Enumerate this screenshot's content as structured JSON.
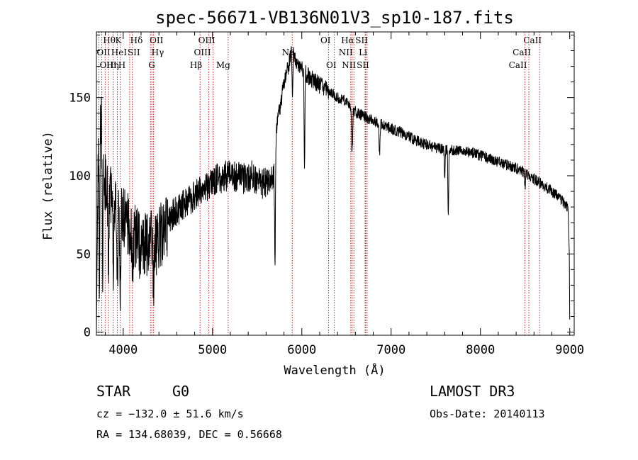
{
  "chart_data": {
    "type": "line",
    "title": "spec-56671-VB136N01V3_sp10-187.fits",
    "xlabel": "Wavelength (Å)",
    "ylabel": "Flux (relative)",
    "xlim": [
      3700,
      9050
    ],
    "ylim": [
      -2,
      192
    ],
    "xticks": [
      4000,
      5000,
      6000,
      7000,
      8000,
      9000
    ],
    "xtick_labels": [
      "4000",
      "5000",
      "6000",
      "7000",
      "8000",
      "9000"
    ],
    "yticks": [
      0,
      50,
      100,
      150
    ],
    "ytick_labels": [
      "0",
      "50",
      "100",
      "150"
    ],
    "grid": false,
    "line_color": "#000000",
    "marker_color": "#b22222",
    "series": [
      {
        "name": "flux",
        "anchors_x": [
          3700,
          3715,
          3730,
          3745,
          3760,
          3780,
          3800,
          3830,
          3860,
          3890,
          3920,
          3950,
          3990,
          4030,
          4070,
          4110,
          4150,
          4200,
          4260,
          4300,
          4340,
          4380,
          4450,
          4550,
          4650,
          4750,
          4850,
          4950,
          5050,
          5150,
          5250,
          5350,
          5450,
          5550,
          5620,
          5660,
          5690,
          5710,
          5730,
          5760,
          5800,
          5850,
          5890,
          5930,
          5980,
          6050,
          6150,
          6280,
          6400,
          6500,
          6560,
          6620,
          6700,
          6800,
          6900,
          7000,
          7100,
          7200,
          7300,
          7400,
          7500,
          7600,
          7700,
          7800,
          7900,
          8000,
          8100,
          8200,
          8300,
          8400,
          8500,
          8600,
          8700,
          8800,
          8900,
          8980,
          8995,
          9000
        ],
        "anchors_y": [
          0,
          90,
          120,
          150,
          125,
          100,
          95,
          90,
          85,
          80,
          82,
          80,
          72,
          70,
          68,
          62,
          62,
          58,
          55,
          58,
          55,
          58,
          65,
          75,
          80,
          85,
          90,
          92,
          98,
          100,
          100,
          98,
          100,
          95,
          95,
          100,
          100,
          125,
          135,
          145,
          160,
          170,
          180,
          175,
          170,
          165,
          160,
          155,
          150,
          148,
          143,
          140,
          138,
          135,
          133,
          130,
          128,
          125,
          122,
          120,
          118,
          117,
          116,
          116,
          115,
          113,
          111,
          109,
          107,
          105,
          102,
          98,
          94,
          90,
          85,
          80,
          50,
          8
        ],
        "dips": [
          {
            "x": 3735,
            "depth": 110,
            "width": 6
          },
          {
            "x": 3770,
            "depth": 70,
            "width": 6
          },
          {
            "x": 3835,
            "depth": 50,
            "width": 6
          },
          {
            "x": 3889,
            "depth": 45,
            "width": 6
          },
          {
            "x": 3934,
            "depth": 55,
            "width": 8
          },
          {
            "x": 3968,
            "depth": 50,
            "width": 8
          },
          {
            "x": 4102,
            "depth": 30,
            "width": 8
          },
          {
            "x": 4190,
            "depth": 25,
            "width": 6
          },
          {
            "x": 4340,
            "depth": 25,
            "width": 8
          },
          {
            "x": 5700,
            "depth": 75,
            "width": 6
          },
          {
            "x": 5895,
            "depth": 30,
            "width": 6
          },
          {
            "x": 6030,
            "depth": 60,
            "width": 6
          },
          {
            "x": 6563,
            "depth": 28,
            "width": 8
          },
          {
            "x": 6870,
            "depth": 20,
            "width": 8
          },
          {
            "x": 7600,
            "depth": 20,
            "width": 6
          },
          {
            "x": 7640,
            "depth": 45,
            "width": 6
          },
          {
            "x": 8500,
            "depth": 10,
            "width": 6
          }
        ]
      }
    ],
    "line_markers": [
      {
        "label": "Hθ",
        "x": 3798,
        "row": 0,
        "align": "left"
      },
      {
        "label": "K",
        "x": 3934,
        "row": 0,
        "align": "left"
      },
      {
        "label": "Hδ",
        "x": 4102,
        "row": 0,
        "align": "left"
      },
      {
        "label": "OII",
        "x": 4320,
        "row": 0,
        "align": "left"
      },
      {
        "label": "OIII",
        "x": 5007,
        "row": 0,
        "align": "right"
      },
      {
        "label": "OI",
        "x": 6300,
        "row": 0,
        "align": "right"
      },
      {
        "label": "Hα",
        "x": 6563,
        "row": 0,
        "align": "right"
      },
      {
        "label": "SII",
        "x": 6716,
        "row": 0,
        "align": "right"
      },
      {
        "label": "CaII",
        "x": 8662,
        "row": 0,
        "align": "right"
      },
      {
        "label": "OII",
        "x": 3727,
        "row": 1,
        "align": "left"
      },
      {
        "label": "HeI",
        "x": 3889,
        "row": 1,
        "align": "left"
      },
      {
        "label": "SII",
        "x": 4072,
        "row": 1,
        "align": "left"
      },
      {
        "label": "Hγ",
        "x": 4340,
        "row": 1,
        "align": "left"
      },
      {
        "label": "OIII",
        "x": 4959,
        "row": 1,
        "align": "right"
      },
      {
        "label": "Na",
        "x": 5893,
        "row": 1,
        "align": "right"
      },
      {
        "label": "NII",
        "x": 6548,
        "row": 1,
        "align": "right"
      },
      {
        "label": "Li",
        "x": 6708,
        "row": 1,
        "align": "right"
      },
      {
        "label": "CaII",
        "x": 8542,
        "row": 1,
        "align": "right"
      },
      {
        "label": "OIII",
        "x": 3760,
        "row": 2,
        "align": "left"
      },
      {
        "label": "Hη",
        "x": 3835,
        "row": 2,
        "align": "left"
      },
      {
        "label": "H",
        "x": 3968,
        "row": 2,
        "align": "left"
      },
      {
        "label": "G",
        "x": 4305,
        "row": 2,
        "align": "left"
      },
      {
        "label": "Hβ",
        "x": 4861,
        "row": 2,
        "align": "right"
      },
      {
        "label": "Mg",
        "x": 5175,
        "row": 2,
        "align": "right"
      },
      {
        "label": "OI",
        "x": 6364,
        "row": 2,
        "align": "right"
      },
      {
        "label": "NII",
        "x": 6583,
        "row": 2,
        "align": "right"
      },
      {
        "label": "SII",
        "x": 6731,
        "row": 2,
        "align": "right"
      },
      {
        "label": "CaII",
        "x": 8498,
        "row": 2,
        "align": "right"
      }
    ]
  },
  "info": {
    "object_class": "STAR",
    "subclass": "G0",
    "survey": "LAMOST DR3",
    "cz": "cz = −132.0 ± 51.6 km/s",
    "obs_date": "Obs-Date: 20140113",
    "coords": "RA = 134.68039, DEC =   0.56668"
  }
}
